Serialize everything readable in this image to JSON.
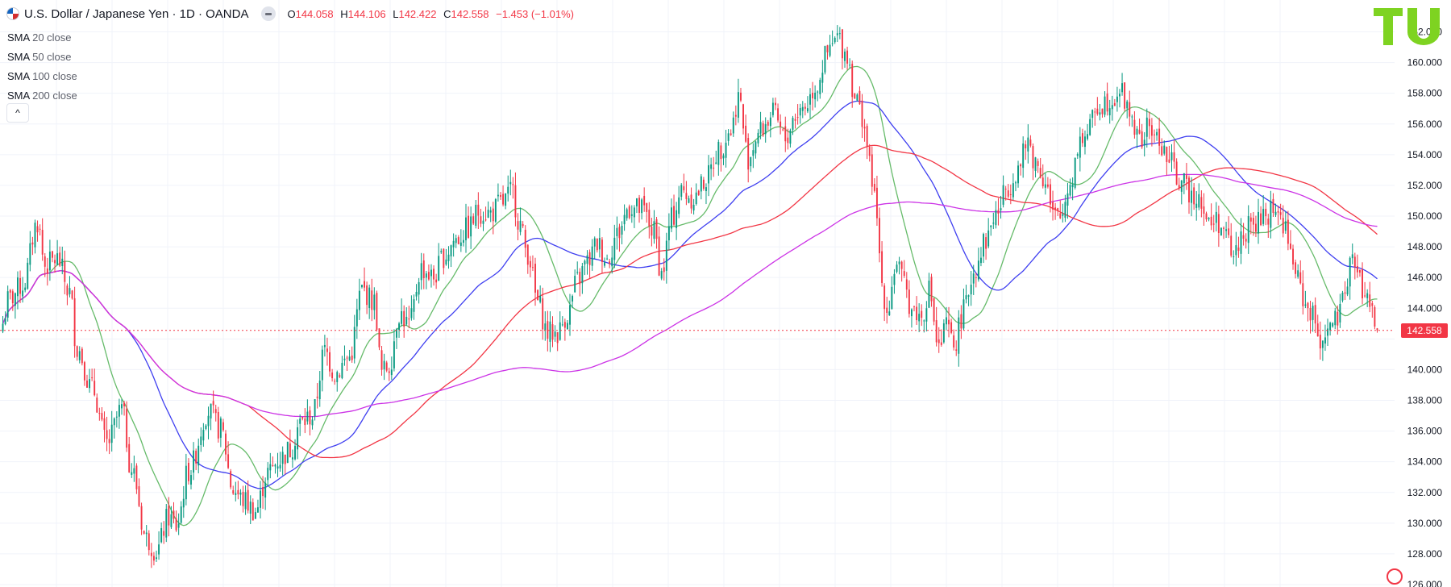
{
  "header": {
    "symbol_title": "U.S. Dollar / Japanese Yen · 1D · OANDA",
    "ohlc": [
      {
        "key": "O",
        "value": "144.058"
      },
      {
        "key": "H",
        "value": "144.106"
      },
      {
        "key": "L",
        "value": "142.422"
      },
      {
        "key": "C",
        "value": "142.558"
      },
      {
        "key": "",
        "value": "−1.453 (−1.01%)"
      }
    ]
  },
  "indicators": [
    {
      "name": "SMA",
      "param": "20 close",
      "color": "#66bb6a"
    },
    {
      "name": "SMA",
      "param": "50 close",
      "color": "#3f3ff0"
    },
    {
      "name": "SMA",
      "param": "100 close",
      "color": "#f23645"
    },
    {
      "name": "SMA",
      "param": "200 close",
      "color": "#cc33e6"
    }
  ],
  "collapse_button": "^",
  "logo": "TU",
  "colors": {
    "up": "#089981",
    "down": "#f23645",
    "grid": "#f0f3fa",
    "price_line": "#f23645"
  },
  "chart_data": {
    "type": "candlestick",
    "ylim": [
      126,
      162.5
    ],
    "y_ticks": [
      "126.000",
      "128.000",
      "130.000",
      "132.000",
      "134.000",
      "136.000",
      "138.000",
      "140.000",
      "142.000",
      "144.000",
      "146.000",
      "148.000",
      "150.000",
      "152.000",
      "154.000",
      "156.000",
      "158.000",
      "160.000",
      "162.000"
    ],
    "last_price": 142.558,
    "last_price_label": "142.558",
    "close_anchors": [
      [
        0,
        143.0
      ],
      [
        2,
        144.5
      ],
      [
        8,
        145.5
      ],
      [
        14,
        149.6
      ],
      [
        17,
        146.8
      ],
      [
        22,
        147.2
      ],
      [
        27,
        145.0
      ],
      [
        30,
        141.4
      ],
      [
        36,
        138.8
      ],
      [
        42,
        135.2
      ],
      [
        48,
        137.4
      ],
      [
        52,
        133.5
      ],
      [
        58,
        129.0
      ],
      [
        62,
        128.2
      ],
      [
        67,
        130.4
      ],
      [
        70,
        129.8
      ],
      [
        75,
        133.4
      ],
      [
        83,
        137.3
      ],
      [
        88,
        136.1
      ],
      [
        93,
        132.2
      ],
      [
        97,
        131.5
      ],
      [
        102,
        130.8
      ],
      [
        107,
        133.3
      ],
      [
        112,
        134.2
      ],
      [
        116,
        134.8
      ],
      [
        120,
        136.5
      ],
      [
        125,
        137.0
      ],
      [
        130,
        141.2
      ],
      [
        134,
        139.8
      ],
      [
        140,
        140.8
      ],
      [
        145,
        145.2
      ],
      [
        150,
        144.4
      ],
      [
        153,
        139.8
      ],
      [
        156,
        140.3
      ],
      [
        160,
        143.7
      ],
      [
        164,
        142.9
      ],
      [
        169,
        146.6
      ],
      [
        174,
        146.0
      ],
      [
        178,
        147.4
      ],
      [
        183,
        148.5
      ],
      [
        188,
        149.2
      ],
      [
        192,
        150.3
      ],
      [
        197,
        150.2
      ],
      [
        201,
        150.8
      ],
      [
        206,
        151.6
      ],
      [
        208,
        149.8
      ],
      [
        212,
        147.6
      ],
      [
        216,
        144.4
      ],
      [
        220,
        142.4
      ],
      [
        224,
        142.4
      ],
      [
        228,
        143.6
      ],
      [
        232,
        145.8
      ],
      [
        236,
        147.0
      ],
      [
        240,
        148.2
      ],
      [
        244,
        147.2
      ],
      [
        248,
        148.8
      ],
      [
        253,
        150.6
      ],
      [
        258,
        150.4
      ],
      [
        263,
        149.0
      ],
      [
        266,
        146.2
      ],
      [
        270,
        149.8
      ],
      [
        274,
        151.6
      ],
      [
        279,
        151.2
      ],
      [
        284,
        152.4
      ],
      [
        289,
        154.3
      ],
      [
        294,
        155.6
      ],
      [
        297,
        157.8
      ],
      [
        301,
        153.8
      ],
      [
        305,
        155.4
      ],
      [
        311,
        156.6
      ],
      [
        316,
        155.0
      ],
      [
        320,
        156.6
      ],
      [
        324,
        157.2
      ],
      [
        328,
        158.4
      ],
      [
        333,
        160.5
      ],
      [
        337,
        161.6
      ],
      [
        341,
        160.5
      ],
      [
        344,
        157.9
      ],
      [
        347,
        156.5
      ],
      [
        351,
        152.6
      ],
      [
        353,
        149.5
      ],
      [
        355,
        145.6
      ],
      [
        357,
        143.9
      ],
      [
        361,
        147.0
      ],
      [
        364,
        145.4
      ],
      [
        367,
        144.0
      ],
      [
        371,
        143.4
      ],
      [
        374,
        145.2
      ],
      [
        378,
        141.3
      ],
      [
        381,
        142.8
      ],
      [
        384,
        141.6
      ],
      [
        388,
        143.8
      ],
      [
        392,
        146.4
      ],
      [
        396,
        148.2
      ],
      [
        401,
        150.1
      ],
      [
        406,
        152.0
      ],
      [
        410,
        153.1
      ],
      [
        414,
        154.8
      ],
      [
        417,
        153.5
      ],
      [
        421,
        152.4
      ],
      [
        424,
        150.0
      ],
      [
        427,
        149.8
      ],
      [
        431,
        152.2
      ],
      [
        435,
        155.0
      ],
      [
        438,
        155.4
      ],
      [
        442,
        157.2
      ],
      [
        447,
        157.6
      ],
      [
        451,
        158.2
      ],
      [
        455,
        156.8
      ],
      [
        459,
        154.8
      ],
      [
        463,
        155.8
      ],
      [
        467,
        154.8
      ],
      [
        471,
        153.6
      ],
      [
        475,
        152.4
      ],
      [
        479,
        151.6
      ],
      [
        483,
        151.4
      ],
      [
        487,
        149.4
      ],
      [
        490,
        149.8
      ],
      [
        494,
        148.6
      ],
      [
        497,
        147.4
      ],
      [
        501,
        149.0
      ],
      [
        505,
        149.4
      ],
      [
        509,
        149.8
      ],
      [
        513,
        150.6
      ],
      [
        517,
        149.6
      ],
      [
        520,
        147.6
      ],
      [
        523,
        145.8
      ],
      [
        526,
        144.3
      ],
      [
        529,
        143.4
      ],
      [
        532,
        142.0
      ],
      [
        535,
        142.6
      ],
      [
        539,
        143.2
      ],
      [
        542,
        144.6
      ],
      [
        544,
        147.6
      ],
      [
        547,
        146.2
      ],
      [
        550,
        144.8
      ],
      [
        553,
        143.8
      ],
      [
        555,
        142.558
      ]
    ]
  }
}
